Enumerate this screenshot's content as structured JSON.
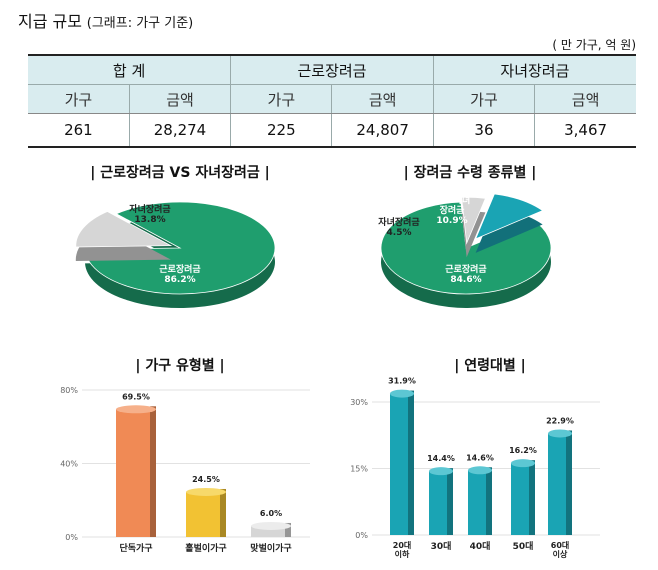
{
  "header": {
    "title": "지급 규모",
    "subtitle": "(그래프: 가구 기준)",
    "unit": "( 만 가구, 억 원)"
  },
  "summary_table": {
    "groups": [
      "합 계",
      "근로장려금",
      "자녀장려금"
    ],
    "subheaders": [
      "가구",
      "금액",
      "가구",
      "금액",
      "가구",
      "금액"
    ],
    "values": [
      "261",
      "28,274",
      "225",
      "24,807",
      "36",
      "3,467"
    ]
  },
  "colors": {
    "green": "#1f9e6e",
    "teal": "#1aa4b4",
    "orange": "#f08a55",
    "yellow": "#f2c233",
    "grey": "#d6d6d6"
  },
  "chart_data": [
    {
      "type": "pie",
      "title": "| 근로장려금 VS 자녀장려금 |",
      "slices": [
        {
          "label": "근로장려금",
          "value": 86.2,
          "value_label": "86.2%"
        },
        {
          "label": "자녀장려금",
          "value": 13.8,
          "value_label": "13.8%"
        }
      ]
    },
    {
      "type": "pie",
      "title": "| 장려금 수령 종류별 |",
      "slices": [
        {
          "label": "근로장려금",
          "value": 84.6,
          "value_label": "84.6%"
        },
        {
          "label": "자녀장려금",
          "value": 4.5,
          "value_label": "4.5%"
        },
        {
          "label": "근로·자녀 장려금",
          "value": 10.9,
          "value_label": "10.9%"
        }
      ]
    },
    {
      "type": "bar",
      "title": "| 가구 유형별 |",
      "categories": [
        "단독가구",
        "홑벌이가구",
        "맞벌이가구"
      ],
      "values": [
        69.5,
        24.5,
        6.0
      ],
      "value_labels": [
        "69.5%",
        "24.5%",
        "6.0%"
      ],
      "yticks": [
        "0%",
        "40%",
        "80%"
      ],
      "ylim": [
        0,
        80
      ]
    },
    {
      "type": "bar",
      "title": "| 연령대별 |",
      "categories": [
        "20대 이하",
        "30대",
        "40대",
        "50대",
        "60대 이상"
      ],
      "values": [
        31.9,
        14.4,
        14.6,
        16.2,
        22.9
      ],
      "value_labels": [
        "31.9%",
        "14.4%",
        "14.6%",
        "16.2%",
        "22.9%"
      ],
      "yticks": [
        "0%",
        "15%",
        "30%"
      ],
      "ylim": [
        0,
        30
      ]
    }
  ]
}
